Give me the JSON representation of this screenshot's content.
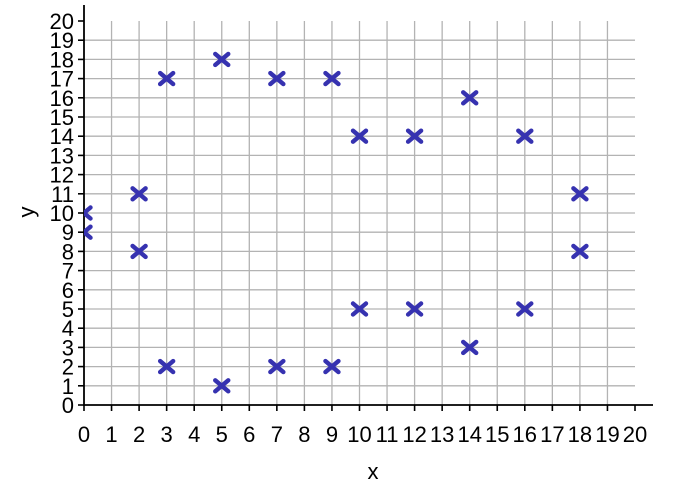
{
  "chart_data": {
    "type": "scatter",
    "title": "",
    "xlabel": "x",
    "ylabel": "y",
    "xlim": [
      0,
      20
    ],
    "ylim": [
      0,
      20
    ],
    "grid": true,
    "legend": false,
    "marker": "x-cross",
    "xticks": [
      0,
      1,
      2,
      3,
      4,
      5,
      6,
      7,
      8,
      9,
      10,
      11,
      12,
      13,
      14,
      15,
      16,
      17,
      18,
      19,
      20
    ],
    "yticks": [
      0,
      1,
      2,
      3,
      4,
      5,
      6,
      7,
      8,
      9,
      10,
      11,
      12,
      13,
      14,
      15,
      16,
      17,
      18,
      19,
      20
    ],
    "points": [
      [
        0,
        9
      ],
      [
        0,
        10
      ],
      [
        2,
        8
      ],
      [
        2,
        11
      ],
      [
        3,
        2
      ],
      [
        3,
        17
      ],
      [
        5,
        1
      ],
      [
        5,
        18
      ],
      [
        7,
        2
      ],
      [
        7,
        17
      ],
      [
        9,
        2
      ],
      [
        9,
        17
      ],
      [
        10,
        5
      ],
      [
        10,
        14
      ],
      [
        12,
        5
      ],
      [
        12,
        14
      ],
      [
        14,
        3
      ],
      [
        14,
        16
      ],
      [
        16,
        5
      ],
      [
        16,
        14
      ],
      [
        18,
        8
      ],
      [
        18,
        11
      ]
    ]
  },
  "colors": {
    "marker": "#3632B0",
    "grid": "#b3b3b3",
    "axis": "#000000",
    "tick_label": "#000000",
    "background": "#ffffff"
  }
}
